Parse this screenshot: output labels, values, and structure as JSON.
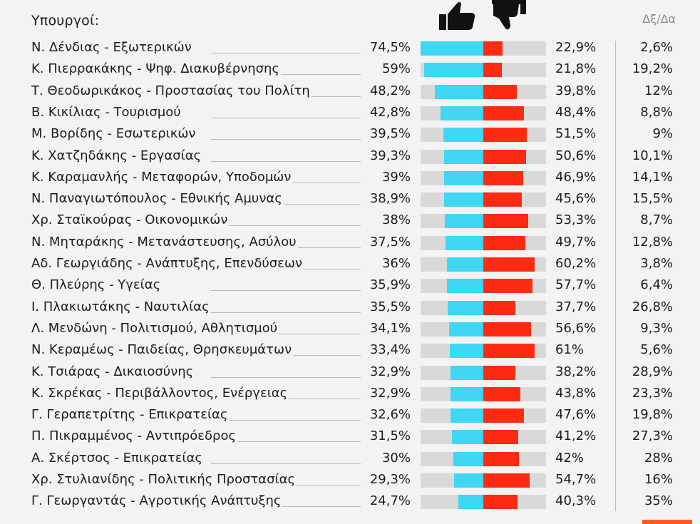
{
  "header": {
    "title": "Υπουργοί:",
    "diff_header": "Δξ/Δα"
  },
  "icons": {
    "approve": "thumbs-up-icon",
    "disapprove": "thumbs-down-icon"
  },
  "colors": {
    "approve": "#3fd7f2",
    "disapprove": "#ff2a12",
    "track": "#d9d9d9",
    "accent": "#ff5a1f"
  },
  "rows": [
    {
      "name": "Ν. Δένδιας - Εξωτερικών",
      "approve": "74,5%",
      "disapprove": "22,9%",
      "diff": "2,6%"
    },
    {
      "name": "Κ. Πιερρακάκης - Ψηφ. Διακυβέρνησης",
      "approve": "59%",
      "disapprove": "21,8%",
      "diff": "19,2%"
    },
    {
      "name": "Τ. Θεοδωρικάκος - Προστασίας του Πολίτη",
      "approve": "48,2%",
      "disapprove": "39,8%",
      "diff": "12%"
    },
    {
      "name": "Β. Κικίλιας - Τουρισμού",
      "approve": "42,8%",
      "disapprove": "48,4%",
      "diff": "8,8%"
    },
    {
      "name": "Μ. Βορίδης - Εσωτερικών",
      "approve": "39,5%",
      "disapprove": "51,5%",
      "diff": "9%"
    },
    {
      "name": "Κ. Χατζηδάκης - Εργασίας",
      "approve": "39,3%",
      "disapprove": "50,6%",
      "diff": "10,1%"
    },
    {
      "name": "Κ. Καραμανλής - Μεταφορών, Υποδομών",
      "approve": "39%",
      "disapprove": "46,9%",
      "diff": "14,1%"
    },
    {
      "name": "Ν. Παναγιωτόπουλος - Εθνικής Αμυνας",
      "approve": "38,9%",
      "disapprove": "45,6%",
      "diff": "15,5%"
    },
    {
      "name": "Χρ. Σταϊκούρας - Οικονομικών",
      "approve": "38%",
      "disapprove": "53,3%",
      "diff": "8,7%"
    },
    {
      "name": "Ν. Μηταράκης - Μετανάστευσης, Ασύλου",
      "approve": "37,5%",
      "disapprove": "49,7%",
      "diff": "12,8%"
    },
    {
      "name": "Αδ. Γεωργιάδης - Ανάπτυξης, Επενδύσεων",
      "approve": "36%",
      "disapprove": "60,2%",
      "diff": "3,8%"
    },
    {
      "name": "Θ. Πλεύρης - Υγείας",
      "approve": "35,9%",
      "disapprove": "57,7%",
      "diff": "6,4%"
    },
    {
      "name": "Ι. Πλακιωτάκης - Ναυτιλίας",
      "approve": "35,5%",
      "disapprove": "37,7%",
      "diff": "26,8%"
    },
    {
      "name": "Λ. Μενδώνη - Πολιτισμού, Αθλητισμού",
      "approve": "34,1%",
      "disapprove": "56,6%",
      "diff": "9,3%"
    },
    {
      "name": "Ν. Κεραμέως - Παιδείας, Θρησκευμάτων",
      "approve": "33,4%",
      "disapprove": "61%",
      "diff": "5,6%"
    },
    {
      "name": "Κ. Τσιάρας - Δικαιοσύνης",
      "approve": "32,9%",
      "disapprove": "38,2%",
      "diff": "28,9%"
    },
    {
      "name": "Κ. Σκρέκας - Περιβάλλοντος, Ενέργειας",
      "approve": "32,9%",
      "disapprove": "43,8%",
      "diff": "23,3%"
    },
    {
      "name": "Γ. Γεραπετρίτης - Επικρατείας",
      "approve": "32,6%",
      "disapprove": "47,6%",
      "diff": "19,8%"
    },
    {
      "name": "Π. Πικραμμένος - Αντιπρόεδρος",
      "approve": "31,5%",
      "disapprove": "41,2%",
      "diff": "27,3%"
    },
    {
      "name": "Α. Σκέρτσος - Επικρατείας",
      "approve": "30%",
      "disapprove": "42%",
      "diff": "28%"
    },
    {
      "name": "Χρ. Στυλιανίδης - Πολιτικής Προστασίας",
      "approve": "29,3%",
      "disapprove": "54,7%",
      "diff": "16%"
    },
    {
      "name": "Γ. Γεωργαντάς - Αγροτικής Ανάπτυξης",
      "approve": "24,7%",
      "disapprove": "40,3%",
      "diff": "35%"
    }
  ],
  "chart_data": {
    "type": "bar",
    "orientation": "diverging-horizontal",
    "title": "",
    "categories": [
      "Ν. Δένδιας - Εξωτερικών",
      "Κ. Πιερρακάκης - Ψηφ. Διακυβέρνησης",
      "Τ. Θεοδωρικάκος - Προστασίας του Πολίτη",
      "Β. Κικίλιας - Τουρισμού",
      "Μ. Βορίδης - Εσωτερικών",
      "Κ. Χατζηδάκης - Εργασίας",
      "Κ. Καραμανλής - Μεταφορών, Υποδομών",
      "Ν. Παναγιωτόπουλος - Εθνικής Αμυνας",
      "Χρ. Σταϊκούρας - Οικονομικών",
      "Ν. Μηταράκης - Μετανάστευσης, Ασύλου",
      "Αδ. Γεωργιάδης - Ανάπτυξης, Επενδύσεων",
      "Θ. Πλεύρης - Υγείας",
      "Ι. Πλακιωτάκης - Ναυτιλίας",
      "Λ. Μενδώνη - Πολιτισμού, Αθλητισμού",
      "Ν. Κεραμέως - Παιδείας, Θρησκευμάτων",
      "Κ. Τσιάρας - Δικαιοσύνης",
      "Κ. Σκρέκας - Περιβάλλοντος, Ενέργειας",
      "Γ. Γεραπετρίτης - Επικρατείας",
      "Π. Πικραμμένος - Αντιπρόεδρος",
      "Α. Σκέρτσος - Επικρατείας",
      "Χρ. Στυλιανίδης - Πολιτικής Προστασίας",
      "Γ. Γεωργαντάς - Αγροτικής Ανάπτυξης"
    ],
    "series": [
      {
        "values": [
          74.5,
          59,
          48.2,
          42.8,
          39.5,
          39.3,
          39,
          38.9,
          38,
          37.5,
          36,
          35.9,
          35.5,
          34.1,
          33.4,
          32.9,
          32.9,
          32.6,
          31.5,
          30,
          29.3,
          24.7
        ]
      },
      {
        "values": [
          22.9,
          21.8,
          39.8,
          48.4,
          51.5,
          50.6,
          46.9,
          45.6,
          53.3,
          49.7,
          60.2,
          57.7,
          37.7,
          56.6,
          61,
          38.2,
          43.8,
          47.6,
          41.2,
          42,
          54.7,
          40.3
        ]
      },
      {
        "values": [
          2.6,
          19.2,
          12,
          8.8,
          9,
          10.1,
          14.1,
          15.5,
          8.7,
          12.8,
          3.8,
          6.4,
          26.8,
          9.3,
          5.6,
          28.9,
          23.3,
          19.8,
          27.3,
          28,
          16,
          35
        ]
      }
    ],
    "xlim": [
      0,
      100
    ],
    "grid": false,
    "legend": "none"
  }
}
